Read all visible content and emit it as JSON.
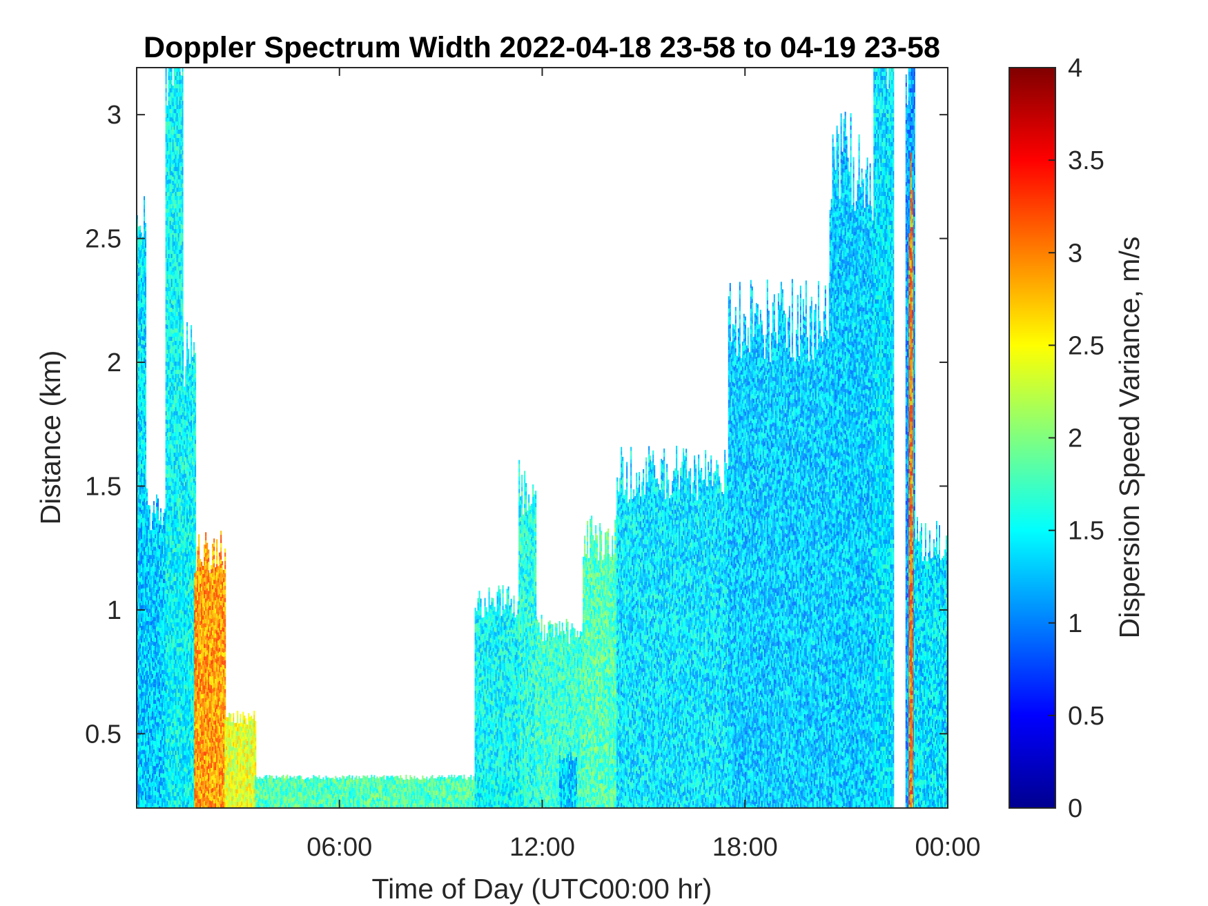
{
  "chart_data": {
    "type": "heatmap",
    "title": "Doppler Spectrum Width 2022-04-18 23-58 to 04-19 23-58",
    "xlabel": "Time of Day (UTC00:00 hr)",
    "ylabel": "Distance (km)",
    "x_unit": "hours",
    "xlim": [
      0,
      24
    ],
    "ylim": [
      0.2,
      3.19
    ],
    "x_ticks": [
      {
        "value": 6,
        "label": "06:00"
      },
      {
        "value": 12,
        "label": "12:00"
      },
      {
        "value": 18,
        "label": "18:00"
      },
      {
        "value": 24,
        "label": "00:00"
      }
    ],
    "y_ticks": [
      {
        "value": 0.5,
        "label": "0.5"
      },
      {
        "value": 1,
        "label": "1"
      },
      {
        "value": 1.5,
        "label": "1.5"
      },
      {
        "value": 2,
        "label": "2"
      },
      {
        "value": 2.5,
        "label": "2.5"
      },
      {
        "value": 3,
        "label": "3"
      }
    ],
    "colorbar": {
      "label": "Dispersion Speed Variance, m/s",
      "colormap": "jet",
      "range": [
        0,
        4
      ],
      "ticks": [
        {
          "value": 0,
          "label": "0"
        },
        {
          "value": 0.5,
          "label": "0.5"
        },
        {
          "value": 1,
          "label": "1"
        },
        {
          "value": 1.5,
          "label": "1.5"
        },
        {
          "value": 2,
          "label": "2"
        },
        {
          "value": 2.5,
          "label": "2.5"
        },
        {
          "value": 3,
          "label": "3"
        },
        {
          "value": 3.5,
          "label": "3.5"
        },
        {
          "value": 4,
          "label": "4"
        }
      ]
    },
    "regions": [
      {
        "t0": 0.0,
        "t1": 0.25,
        "top": 2.45,
        "value": 1.4,
        "note": "surface layer start"
      },
      {
        "t0": 0.0,
        "t1": 1.7,
        "top": 1.35,
        "value": 1.3
      },
      {
        "t0": 0.85,
        "t1": 1.35,
        "top": 3.19,
        "value": 1.5,
        "note": "tall column"
      },
      {
        "t0": 1.35,
        "t1": 1.75,
        "top": 1.95,
        "value": 1.5
      },
      {
        "t0": 1.7,
        "t1": 2.6,
        "top": 1.2,
        "value": 2.9,
        "note": "high variance plume"
      },
      {
        "t0": 2.6,
        "t1": 3.5,
        "top": 0.55,
        "value": 2.4
      },
      {
        "t0": 3.5,
        "t1": 11.5,
        "top": 0.32,
        "value": 1.8,
        "note": "thin surface layer"
      },
      {
        "t0": 10.0,
        "t1": 11.3,
        "top": 1.0,
        "value": 1.5
      },
      {
        "t0": 11.3,
        "t1": 11.8,
        "top": 1.45,
        "value": 1.6
      },
      {
        "t0": 11.8,
        "t1": 13.2,
        "top": 0.9,
        "value": 1.7
      },
      {
        "t0": 12.5,
        "t1": 13.0,
        "top": 0.4,
        "value": 1.3
      },
      {
        "t0": 13.2,
        "t1": 14.2,
        "top": 1.25,
        "value": 1.8
      },
      {
        "t0": 14.2,
        "t1": 17.5,
        "top": 1.5,
        "value": 1.4
      },
      {
        "t0": 17.5,
        "t1": 20.5,
        "top": 2.1,
        "value": 1.3
      },
      {
        "t0": 20.5,
        "t1": 22.3,
        "top": 2.7,
        "value": 1.3
      },
      {
        "t0": 21.8,
        "t1": 22.4,
        "top": 3.19,
        "value": 1.4,
        "note": "upper column"
      },
      {
        "t0": 22.75,
        "t1": 23.0,
        "top": 3.19,
        "value": 1.1,
        "note": "upper column"
      },
      {
        "t0": 22.85,
        "t1": 22.95,
        "top": 2.6,
        "value": 3.0,
        "note": "orange vertical line"
      },
      {
        "t0": 23.0,
        "t1": 24.0,
        "top": 1.25,
        "value": 1.4
      }
    ],
    "grid": false,
    "legend": "colorbar-right"
  }
}
